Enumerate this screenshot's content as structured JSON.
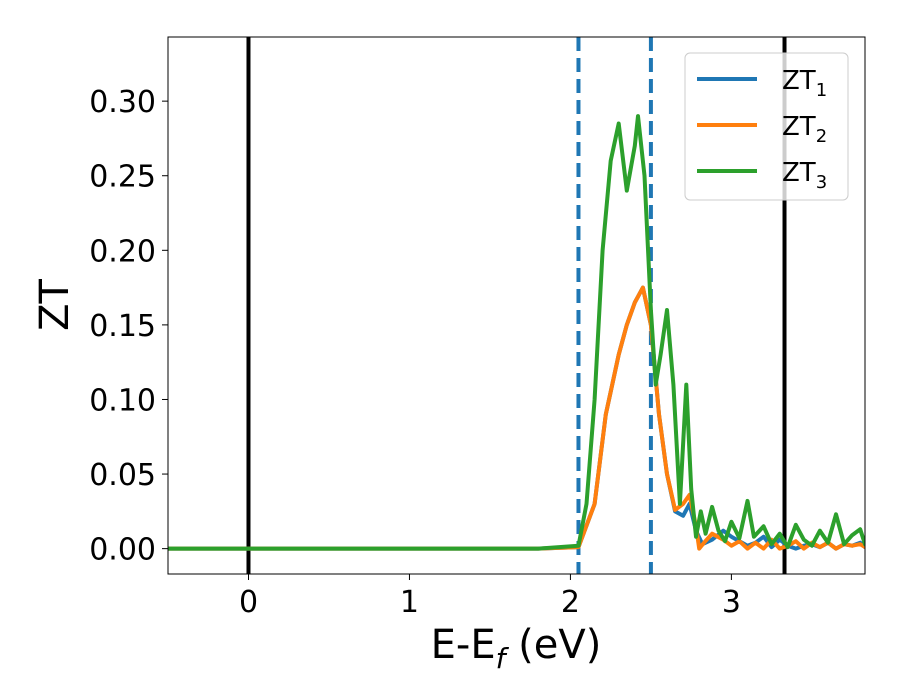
{
  "chart_data": {
    "type": "line",
    "xlabel": "E-E",
    "xlabel_sub": "f",
    "xlabel_unit": " (eV)",
    "ylabel": "ZT",
    "xlim": [
      -0.5,
      3.83
    ],
    "ylim": [
      -0.017,
      0.343
    ],
    "xticks": [
      0,
      1,
      2,
      3
    ],
    "yticks": [
      0.0,
      0.05,
      0.1,
      0.15,
      0.2,
      0.25,
      0.3
    ],
    "ytick_labels": [
      "0.00",
      "0.05",
      "0.10",
      "0.15",
      "0.20",
      "0.25",
      "0.30"
    ],
    "grid": false,
    "legend_position": "top-right",
    "vlines": [
      {
        "x": 0.0,
        "style": "solid",
        "color": "#000000"
      },
      {
        "x": 3.33,
        "style": "solid",
        "color": "#000000"
      },
      {
        "x": 2.05,
        "style": "dashed",
        "color": "#1f77b4"
      },
      {
        "x": 2.5,
        "style": "dashed",
        "color": "#1f77b4"
      }
    ],
    "series": [
      {
        "name": "ZT",
        "sub": "1",
        "color": "#1f77b4",
        "x": [
          -0.5,
          1.8,
          2.05,
          2.15,
          2.22,
          2.3,
          2.35,
          2.4,
          2.45,
          2.5,
          2.55,
          2.6,
          2.65,
          2.7,
          2.74,
          2.78,
          2.82,
          2.88,
          2.95,
          3.0,
          3.05,
          3.1,
          3.15,
          3.2,
          3.25,
          3.3,
          3.35,
          3.4,
          3.45,
          3.5,
          3.55,
          3.6,
          3.65,
          3.7,
          3.75,
          3.8,
          3.83
        ],
        "y": [
          0.0,
          0.0,
          0.001,
          0.03,
          0.09,
          0.13,
          0.15,
          0.165,
          0.175,
          0.15,
          0.09,
          0.05,
          0.025,
          0.022,
          0.03,
          0.012,
          0.003,
          0.006,
          0.012,
          0.008,
          0.005,
          0.002,
          0.004,
          0.008,
          0.001,
          0.006,
          0.002,
          0.0,
          0.002,
          0.003,
          0.001,
          0.004,
          0.0,
          0.003,
          0.002,
          0.004,
          0.001
        ]
      },
      {
        "name": "ZT",
        "sub": "2",
        "color": "#ff7f0e",
        "x": [
          -0.5,
          1.8,
          2.05,
          2.15,
          2.22,
          2.3,
          2.35,
          2.4,
          2.45,
          2.5,
          2.55,
          2.6,
          2.65,
          2.7,
          2.74,
          2.78,
          2.8,
          2.83,
          2.88,
          2.95,
          3.0,
          3.05,
          3.1,
          3.15,
          3.2,
          3.25,
          3.3,
          3.35,
          3.4,
          3.45,
          3.5,
          3.55,
          3.6,
          3.65,
          3.7,
          3.75,
          3.8,
          3.83
        ],
        "y": [
          0.0,
          0.0,
          0.001,
          0.03,
          0.09,
          0.13,
          0.15,
          0.165,
          0.175,
          0.15,
          0.09,
          0.05,
          0.026,
          0.03,
          0.036,
          0.015,
          0.0,
          0.004,
          0.01,
          0.006,
          0.002,
          0.005,
          0.0,
          0.004,
          0.0,
          0.006,
          0.0,
          0.002,
          0.005,
          0.0,
          0.004,
          0.001,
          0.004,
          0.0,
          0.003,
          0.002,
          0.003,
          0.001
        ]
      },
      {
        "name": "ZT",
        "sub": "3",
        "color": "#2ca02c",
        "x": [
          -0.5,
          1.8,
          2.05,
          2.1,
          2.15,
          2.2,
          2.25,
          2.3,
          2.35,
          2.4,
          2.42,
          2.46,
          2.5,
          2.53,
          2.56,
          2.6,
          2.64,
          2.68,
          2.72,
          2.75,
          2.78,
          2.81,
          2.84,
          2.88,
          2.92,
          2.96,
          3.0,
          3.05,
          3.1,
          3.14,
          3.2,
          3.25,
          3.3,
          3.35,
          3.4,
          3.45,
          3.5,
          3.55,
          3.6,
          3.65,
          3.7,
          3.75,
          3.8,
          3.83
        ],
        "y": [
          0.0,
          0.0,
          0.002,
          0.03,
          0.1,
          0.2,
          0.26,
          0.285,
          0.24,
          0.27,
          0.29,
          0.25,
          0.16,
          0.11,
          0.13,
          0.16,
          0.11,
          0.03,
          0.11,
          0.04,
          0.008,
          0.025,
          0.01,
          0.028,
          0.012,
          0.005,
          0.018,
          0.007,
          0.032,
          0.008,
          0.015,
          0.003,
          0.01,
          0.001,
          0.016,
          0.006,
          0.002,
          0.012,
          0.004,
          0.023,
          0.003,
          0.009,
          0.013,
          0.003
        ]
      }
    ]
  }
}
